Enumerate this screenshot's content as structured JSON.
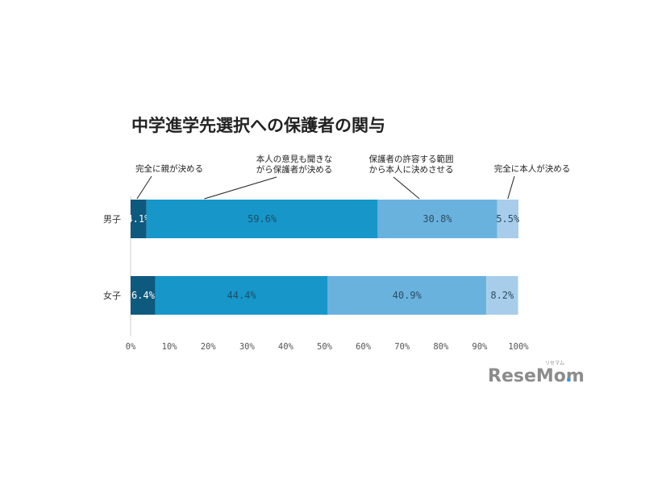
{
  "chart_data": {
    "type": "bar",
    "orientation": "horizontal",
    "stacked": true,
    "title": "中学進学先選択への保護者の関与",
    "categories": [
      "男子",
      "女子"
    ],
    "series": [
      {
        "name": "完全に親が決める",
        "values": [
          4.1,
          6.4
        ],
        "labels": [
          "4.1%",
          "6.4%"
        ]
      },
      {
        "name": "本人の意見も聞きながら保護者が決める",
        "legend_lines": [
          "本人の意見も聞きな",
          "がら保護者が決める"
        ],
        "values": [
          59.6,
          44.4
        ],
        "labels": [
          "59.6%",
          "44.4%"
        ]
      },
      {
        "name": "保護者の許容する範囲から本人に決めさせる",
        "legend_lines": [
          "保護者の許容する範囲",
          "から本人に決めさせる"
        ],
        "values": [
          30.8,
          40.9
        ],
        "labels": [
          "30.8%",
          "40.9%"
        ]
      },
      {
        "name": "完全に本人が決める",
        "values": [
          5.5,
          8.2
        ],
        "labels": [
          "5.5%",
          "8.2%"
        ]
      }
    ],
    "xlim": [
      0,
      100
    ],
    "x_ticks": [
      "0%",
      "10%",
      "20%",
      "30%",
      "40%",
      "50%",
      "60%",
      "70%",
      "80%",
      "90%",
      "100%"
    ],
    "legend_placement": "top, callout labels above each segment",
    "grid": false,
    "colors": [
      "#0e5a7e",
      "#1696c9",
      "#6ab2de",
      "#a8cdeb"
    ],
    "label_colors": [
      "#ffffff",
      "#1e4f66",
      "#2c4e63",
      "#2c4e63"
    ]
  },
  "logo": {
    "text": "ReseMom",
    "small": "リセマム"
  }
}
